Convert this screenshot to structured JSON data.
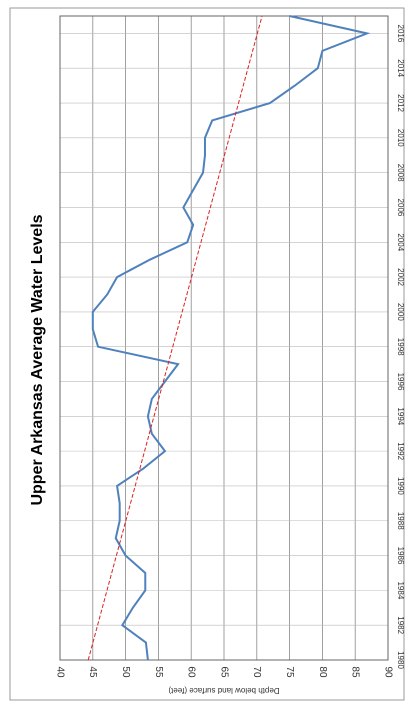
{
  "chart_data": {
    "type": "line",
    "title": "Upper Arkansas Average Water Levels",
    "y_label": "Depth below land surface (feet)",
    "x": [
      1980,
      1981,
      1982,
      1983,
      1984,
      1985,
      1986,
      1987,
      1988,
      1989,
      1990,
      1991,
      1992,
      1993,
      1994,
      1995,
      1996,
      1997,
      1998,
      1999,
      2000,
      2001,
      2002,
      2003,
      2004,
      2005,
      2006,
      2007,
      2008,
      2009,
      2010,
      2011,
      2012,
      2013,
      2014,
      2015,
      2016,
      2017
    ],
    "series": [
      {
        "color": "#4f81bd",
        "values": [
          53.4,
          53.1,
          49.5,
          51.1,
          53,
          53,
          50,
          48.5,
          49.1,
          49.1,
          48.7,
          52.7,
          56,
          54,
          53.4,
          54,
          56,
          58,
          45.8,
          45,
          45,
          47.2,
          48.7,
          53.7,
          59.4,
          60.3,
          58.8,
          60.3,
          61.8,
          62.1,
          62.1,
          63.2,
          72,
          75.8,
          79.3,
          80,
          86.8,
          75
        ]
      }
    ],
    "trendline": {
      "color": "#e02020",
      "x": [
        1980,
        2017
      ],
      "values": [
        44.3,
        70.8
      ]
    },
    "xlim": [
      1980,
      2017
    ],
    "xticks": [
      1980,
      1982,
      1984,
      1986,
      1988,
      1990,
      1992,
      1994,
      1996,
      1998,
      2000,
      2002,
      2004,
      2006,
      2008,
      2010,
      2012,
      2014,
      2016
    ],
    "ylim": [
      40,
      90
    ],
    "yticks": [
      40,
      45,
      50,
      55,
      60,
      65,
      70,
      75,
      80,
      85,
      90
    ],
    "grid": true
  }
}
